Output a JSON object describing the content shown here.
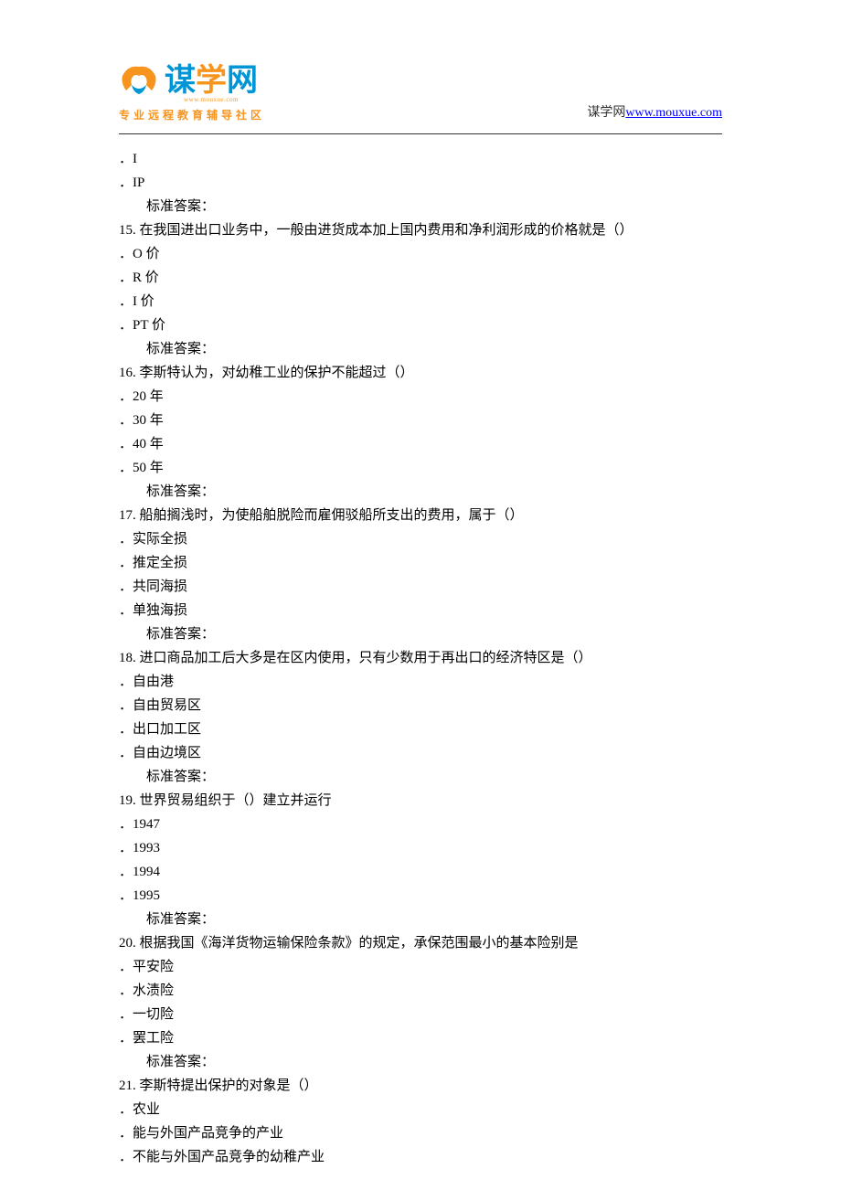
{
  "header": {
    "logo_chars": [
      "谋",
      "学",
      "网"
    ],
    "logo_url_small": "www.mouxue.com",
    "tagline": "专业远程教育辅导社区",
    "site_name": "谋学网",
    "site_url": "www.mouxue.com",
    "site_href": "http://www.mouxue.com"
  },
  "content": {
    "lines": [
      {
        "type": "option",
        "text": "．I"
      },
      {
        "type": "option",
        "text": "．IP"
      },
      {
        "type": "answer",
        "text": "标准答案："
      },
      {
        "type": "question",
        "text": "15.  在我国进出口业务中，一般由进货成本加上国内费用和净利润形成的价格就是（）"
      },
      {
        "type": "option",
        "text": "．O 价"
      },
      {
        "type": "option",
        "text": "．R 价"
      },
      {
        "type": "option",
        "text": "．I 价"
      },
      {
        "type": "option",
        "text": "．PT 价"
      },
      {
        "type": "answer",
        "text": "标准答案："
      },
      {
        "type": "question",
        "text": "16.  李斯特认为，对幼稚工业的保护不能超过（）"
      },
      {
        "type": "option",
        "text": "．20 年"
      },
      {
        "type": "option",
        "text": "．30 年"
      },
      {
        "type": "option",
        "text": "．40 年"
      },
      {
        "type": "option",
        "text": "．50 年"
      },
      {
        "type": "answer",
        "text": "标准答案："
      },
      {
        "type": "question",
        "text": "17.  船舶搁浅时，为使船舶脱险而雇佣驳船所支出的费用，属于（）"
      },
      {
        "type": "option",
        "text": "．实际全损"
      },
      {
        "type": "option",
        "text": "．推定全损"
      },
      {
        "type": "option",
        "text": "．共同海损"
      },
      {
        "type": "option",
        "text": "．单独海损"
      },
      {
        "type": "answer",
        "text": "标准答案："
      },
      {
        "type": "question",
        "text": "18.  进口商品加工后大多是在区内使用，只有少数用于再出口的经济特区是（）"
      },
      {
        "type": "option",
        "text": "．自由港"
      },
      {
        "type": "option",
        "text": "．自由贸易区"
      },
      {
        "type": "option",
        "text": "．出口加工区"
      },
      {
        "type": "option",
        "text": "．自由边境区"
      },
      {
        "type": "answer",
        "text": "标准答案："
      },
      {
        "type": "question",
        "text": "19.  世界贸易组织于（）建立并运行"
      },
      {
        "type": "option",
        "text": "．1947"
      },
      {
        "type": "option",
        "text": "．1993"
      },
      {
        "type": "option",
        "text": "．1994"
      },
      {
        "type": "option",
        "text": "．1995"
      },
      {
        "type": "answer",
        "text": "标准答案："
      },
      {
        "type": "question",
        "text": "20.  根据我国《海洋货物运输保险条款》的规定，承保范围最小的基本险别是"
      },
      {
        "type": "option",
        "text": "．平安险"
      },
      {
        "type": "option",
        "text": "．水渍险"
      },
      {
        "type": "option",
        "text": "．一切险"
      },
      {
        "type": "option",
        "text": "．罢工险"
      },
      {
        "type": "answer",
        "text": "标准答案："
      },
      {
        "type": "question",
        "text": "21.  李斯特提出保护的对象是（）"
      },
      {
        "type": "option",
        "text": "．农业"
      },
      {
        "type": "option",
        "text": "．能与外国产品竞争的产业"
      },
      {
        "type": "option",
        "text": "．不能与外国产品竞争的幼稚产业"
      }
    ]
  }
}
